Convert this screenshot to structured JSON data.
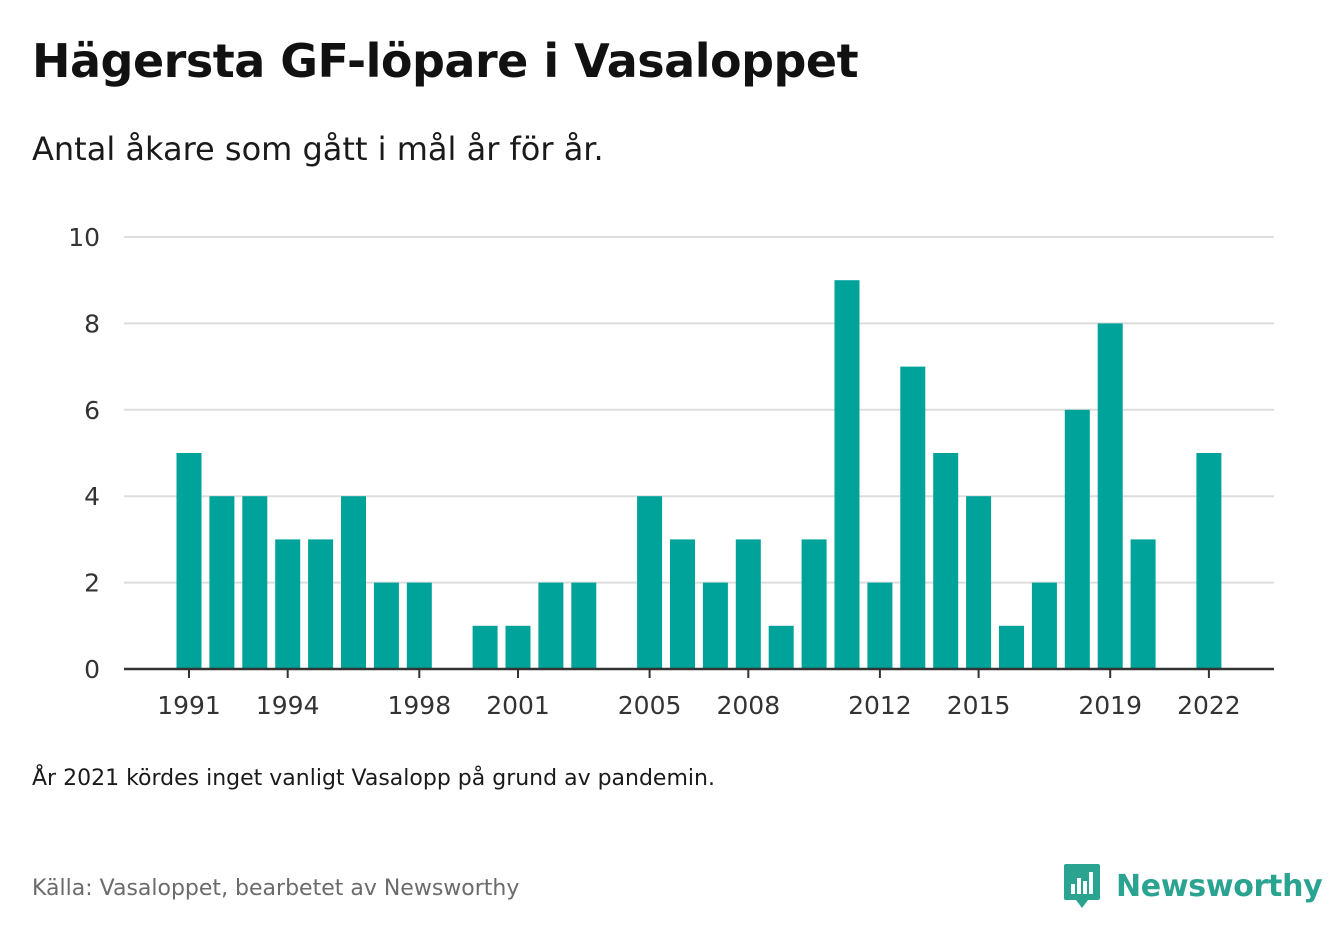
{
  "header": {
    "title": "Hägersta GF-löpare i Vasaloppet",
    "subtitle": "Antal åkare som gått i mål år för år."
  },
  "footer": {
    "note": "År 2021 kördes inget vanligt Vasalopp på grund av pandemin.",
    "source": "Källa: Vasaloppet, bearbetet av Newsworthy",
    "logo_text": "Newsworthy",
    "logo_icon": "bar-chart-speech-bubble-icon"
  },
  "colors": {
    "bar": "#00a39a",
    "grid": "#dddddd",
    "axis": "#333333",
    "logo": "#2aa391"
  },
  "chart_data": {
    "type": "bar",
    "x": [
      1991,
      1992,
      1993,
      1994,
      1995,
      1996,
      1997,
      1998,
      1999,
      2000,
      2001,
      2002,
      2003,
      2004,
      2005,
      2006,
      2007,
      2008,
      2009,
      2010,
      2011,
      2012,
      2013,
      2014,
      2015,
      2016,
      2017,
      2018,
      2019,
      2020,
      2021,
      2022
    ],
    "values": [
      5,
      4,
      4,
      3,
      3,
      4,
      2,
      2,
      0,
      1,
      1,
      2,
      2,
      0,
      4,
      3,
      2,
      3,
      1,
      3,
      9,
      2,
      7,
      5,
      4,
      1,
      2,
      6,
      8,
      3,
      0,
      5
    ],
    "x_tick_labels": [
      1991,
      1994,
      1998,
      2001,
      2005,
      2008,
      2012,
      2015,
      2019,
      2022
    ],
    "y_ticks": [
      0,
      2,
      4,
      6,
      8,
      10
    ],
    "ylim": [
      0,
      10
    ],
    "grid": true,
    "legend": "none"
  }
}
